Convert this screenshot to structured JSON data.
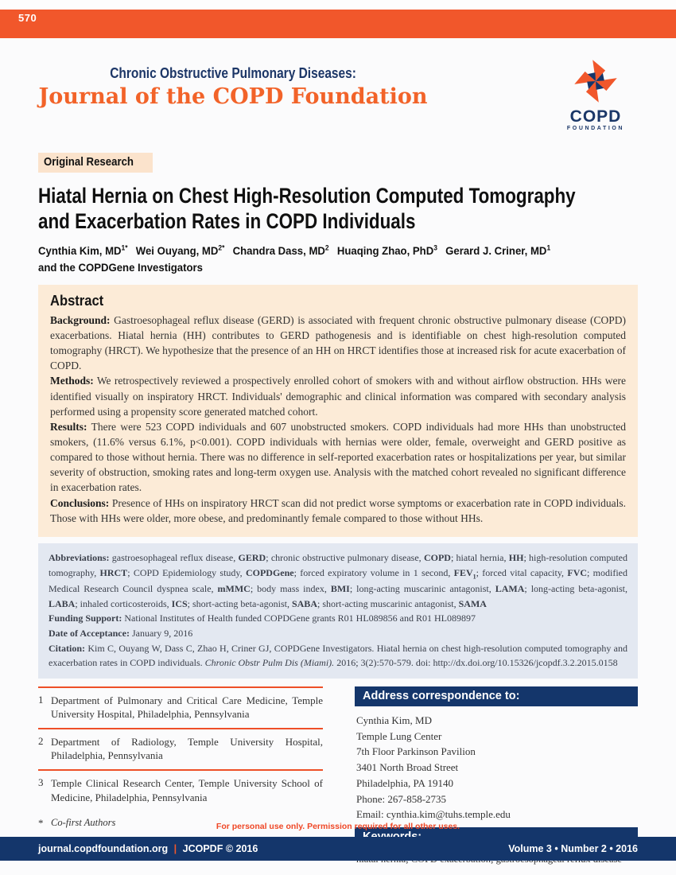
{
  "colors": {
    "orange_band": "#f1572b",
    "orange_title": "#f26329",
    "navy": "#14366b",
    "abstract_bg": "#fcebd7",
    "abbrev_bg": "#e3e8f1",
    "badge_bg": "#fbe3cc"
  },
  "page_number": "570",
  "masthead": {
    "supertitle": "Chronic Obstructive Pulmonary Diseases:",
    "title": "Journal of the COPD Foundation",
    "logo_text": "COPD",
    "logo_subtext": "FOUNDATION"
  },
  "badge_label": "Original Research",
  "article": {
    "title_lines": [
      "Hiatal Hernia on Chest High-Resolution Computed Tomography",
      "and Exacerbation Rates in COPD Individuals"
    ],
    "authors": [
      {
        "name": "Cynthia Kim, MD",
        "sup": "1*"
      },
      {
        "name": "Wei Ouyang, MD",
        "sup": "2*"
      },
      {
        "name": "Chandra Dass, MD",
        "sup": "2"
      },
      {
        "name": "Huaqing Zhao, PhD",
        "sup": "3"
      },
      {
        "name": "Gerard J. Criner, MD",
        "sup": "1"
      }
    ],
    "authors_note": "and the COPDGene Investigators"
  },
  "abstract": {
    "heading": "Abstract",
    "sections": [
      {
        "label": "Background:",
        "text": "Gastroesophageal reflux disease (GERD) is associated with frequent chronic obstructive pulmonary disease (COPD) exacerbations.  Hiatal hernia (HH) contributes to GERD pathogenesis and is identifiable on chest high-resolution computed tomography (HRCT).  We hypothesize that the presence of an HH on HRCT identifies those at increased risk for acute exacerbation of COPD."
      },
      {
        "label": "Methods:",
        "text": "We retrospectively reviewed a prospectively enrolled cohort of smokers with and without airflow obstruction.  HHs were identified visually on inspiratory HRCT. Individuals' demographic and clinical information was compared with secondary analysis performed using a propensity score generated matched cohort."
      },
      {
        "label": "Results:",
        "text": "There were 523 COPD individuals and 607 unobstructed smokers.  COPD individuals had more HHs than unobstructed smokers, (11.6% versus 6.1%, p<0.001).  COPD individuals with hernias were older, female, overweight and GERD positive as compared to those without hernia. There was no difference in self-reported exacerbation rates or hospitalizations per year, but similar severity of obstruction, smoking rates and long-term oxygen use.  Analysis with the matched cohort revealed no significant difference in exacerbation rates."
      },
      {
        "label": "Conclusions:",
        "text": "Presence of HHs on inspiratory HRCT scan did not predict worse symptoms or exacerbation rate in COPD individuals.  Those with HHs were older, more obese, and predominantly female compared to those without HHs."
      }
    ]
  },
  "meta": {
    "abbreviations": [
      {
        "t": "Abbreviations: ",
        "b": true
      },
      {
        "t": "gastroesophageal reflux disease, "
      },
      {
        "t": "GERD",
        "b": true
      },
      {
        "t": "; chronic obstructive pulmonary disease, "
      },
      {
        "t": "COPD",
        "b": true
      },
      {
        "t": "; hiatal hernia, "
      },
      {
        "t": "HH",
        "b": true
      },
      {
        "t": "; high-resolution computed tomography, "
      },
      {
        "t": "HRCT",
        "b": true
      },
      {
        "t": "; COPD Epidemiology study, "
      },
      {
        "t": "COPDGene",
        "b": true
      },
      {
        "t": "; forced expiratory volume in 1 second, "
      },
      {
        "t": "FEV",
        "b": true
      },
      {
        "t": "1",
        "b": true,
        "sub": true
      },
      {
        "t": "; forced vital capacity, "
      },
      {
        "t": "FVC",
        "b": true
      },
      {
        "t": "; modified Medical Research Council dyspnea scale, "
      },
      {
        "t": "mMMC",
        "b": true
      },
      {
        "t": "; body mass index, "
      },
      {
        "t": "BMI",
        "b": true
      },
      {
        "t": "; long-acting muscarinic antagonist, "
      },
      {
        "t": "LAMA",
        "b": true
      },
      {
        "t": "; long-acting beta-agonist, "
      },
      {
        "t": "LABA",
        "b": true
      },
      {
        "t": "; inhaled corticosteroids, "
      },
      {
        "t": "ICS",
        "b": true
      },
      {
        "t": "; short-acting beta-agonist, "
      },
      {
        "t": "SABA",
        "b": true
      },
      {
        "t": "; short-acting muscarinic antagonist, "
      },
      {
        "t": "SAMA",
        "b": true
      }
    ],
    "funding": [
      {
        "t": "Funding Support: ",
        "b": true
      },
      {
        "t": "National Institutes of Health funded COPDGene grants R01 HL089856 and R01 HL089897"
      }
    ],
    "acceptance": [
      {
        "t": "Date of Acceptance: ",
        "b": true
      },
      {
        "t": "January 9, 2016"
      }
    ],
    "citation": [
      {
        "t": "Citation: ",
        "b": true
      },
      {
        "t": "Kim C, Ouyang W, Dass C, Zhao H, Criner GJ, COPDGene Investigators. Hiatal hernia on chest high-resolution computed tomography and exacerbation rates in COPD individuals. "
      },
      {
        "t": "Chronic Obstr Pulm Dis (Miami).",
        "i": true
      },
      {
        "t": " 2016; 3(2):570-579. doi: http://dx.doi.org/10.15326/jcopdf.3.2.2015.0158"
      }
    ]
  },
  "affiliations": {
    "items": [
      {
        "num": "1",
        "text": "Department of Pulmonary and Critical Care Medicine, Temple University Hospital, Philadelphia, Pennsylvania"
      },
      {
        "num": "2",
        "text": "Department of Radiology, Temple University Hospital, Philadelphia, Pennsylvania"
      },
      {
        "num": "3",
        "text": "Temple Clinical Research Center, Temple University School of Medicine, Philadelphia, Pennsylvania"
      }
    ],
    "cofirst_marker": "*",
    "cofirst_text": "Co-first Authors"
  },
  "correspondence": {
    "header": "Address correspondence to:",
    "lines": [
      "Cynthia Kim, MD",
      "Temple Lung Center",
      "7th Floor Parkinson Pavilion",
      "3401 North Broad Street",
      "Philadelphia, PA 19140",
      "Phone: 267-858-2735",
      "Email: cynthia.kim@tuhs.temple.edu"
    ],
    "keywords_header": "Keywords:",
    "keywords": "hiatal hernia; COPD exacerbation; gastroesophageal reflux disease"
  },
  "notice": "For personal use only. Permission required for all other uses.",
  "footer": {
    "site": "journal.copdfoundation.org",
    "separator": "|",
    "journal": "JCOPDF © 2016",
    "issue": "Volume 3 • Number 2 • 2016"
  }
}
